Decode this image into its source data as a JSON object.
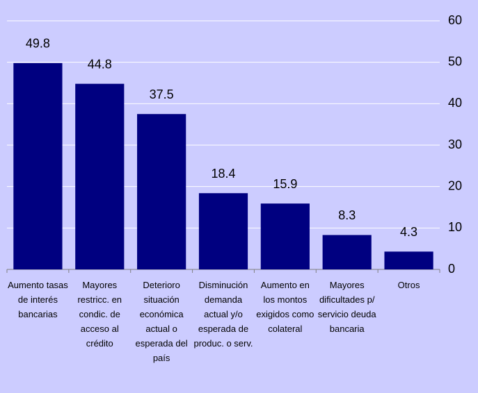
{
  "chart_data": {
    "type": "bar",
    "categories": [
      "Aumento tasas de interés bancarias",
      "Mayores restricc. en condic. de acceso al crédito",
      "Deterioro situación económica actual o esperada del país",
      "Disminución demanda actual y/o esperada de produc. o serv.",
      "Aumento en los montos exigidos como colateral",
      "Mayores dificultades p/ servicio deuda bancaria",
      "Otros"
    ],
    "values": [
      49.8,
      44.8,
      37.5,
      18.4,
      15.9,
      8.3,
      4.3
    ],
    "color": "#000080",
    "ylim": [
      0,
      60
    ],
    "yticks": [
      0,
      10,
      20,
      30,
      40,
      50,
      60
    ],
    "grid": true
  }
}
